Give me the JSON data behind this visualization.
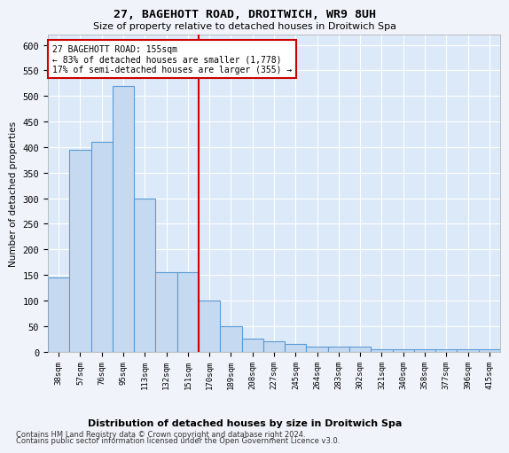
{
  "title1": "27, BAGEHOTT ROAD, DROITWICH, WR9 8UH",
  "title2": "Size of property relative to detached houses in Droitwich Spa",
  "xlabel": "Distribution of detached houses by size in Droitwich Spa",
  "ylabel": "Number of detached properties",
  "footer1": "Contains HM Land Registry data © Crown copyright and database right 2024.",
  "footer2": "Contains public sector information licensed under the Open Government Licence v3.0.",
  "annotation_title": "27 BAGEHOTT ROAD: 155sqm",
  "annotation_line1": "← 83% of detached houses are smaller (1,778)",
  "annotation_line2": "17% of semi-detached houses are larger (355) →",
  "bar_color": "#c5d9f0",
  "bar_edge_color": "#5b9bd5",
  "vline_color": "#cc0000",
  "vline_x": 6.5,
  "categories": [
    "38sqm",
    "57sqm",
    "76sqm",
    "95sqm",
    "113sqm",
    "132sqm",
    "151sqm",
    "170sqm",
    "189sqm",
    "208sqm",
    "227sqm",
    "245sqm",
    "264sqm",
    "283sqm",
    "302sqm",
    "321sqm",
    "340sqm",
    "358sqm",
    "377sqm",
    "396sqm",
    "415sqm"
  ],
  "values": [
    145,
    395,
    410,
    520,
    300,
    155,
    155,
    100,
    50,
    25,
    20,
    15,
    10,
    10,
    10,
    5,
    5,
    5,
    5,
    5,
    5
  ],
  "ylim": [
    0,
    620
  ],
  "yticks": [
    0,
    50,
    100,
    150,
    200,
    250,
    300,
    350,
    400,
    450,
    500,
    550,
    600
  ],
  "background_color": "#dce9f8",
  "grid_color": "#ffffff",
  "box_color": "#cc0000",
  "fig_bg": "#f0f4fa"
}
